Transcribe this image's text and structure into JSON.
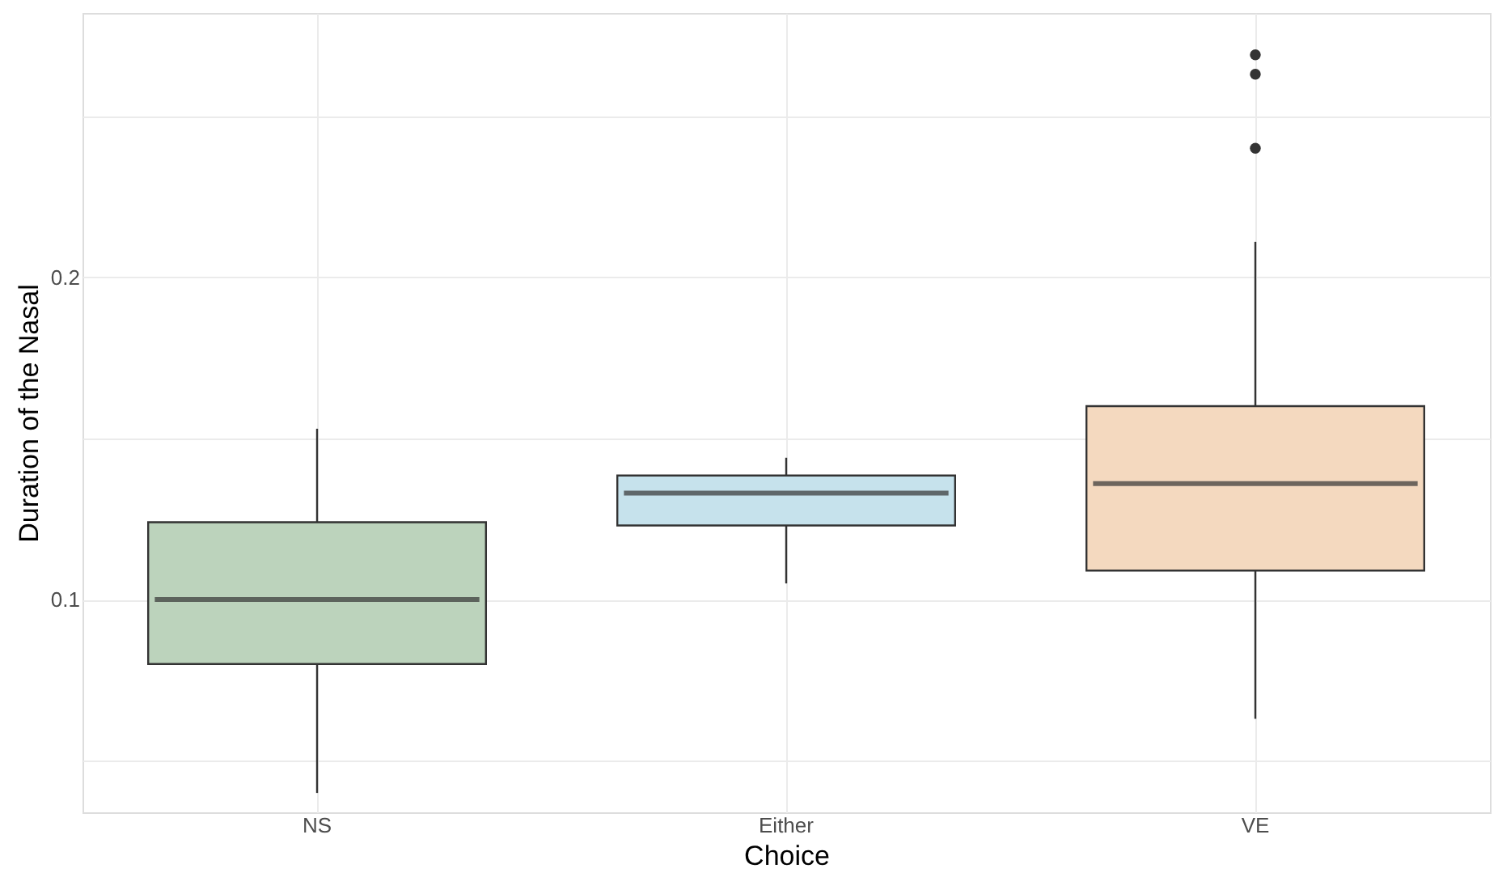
{
  "chart_data": {
    "type": "box",
    "xlabel": "Choice",
    "ylabel": "Duration of the Nasal",
    "categories": [
      "NS",
      "Either",
      "VE"
    ],
    "colors": [
      "#bcd3bc",
      "#c6e2ec",
      "#f4d9bf"
    ],
    "boxes": [
      {
        "low": 0.04,
        "q1": 0.08,
        "median": 0.1,
        "q3": 0.124,
        "high": 0.153
      },
      {
        "low": 0.105,
        "q1": 0.123,
        "median": 0.133,
        "q3": 0.1385,
        "high": 0.144
      },
      {
        "low": 0.063,
        "q1": 0.109,
        "median": 0.136,
        "q3": 0.16,
        "high": 0.211,
        "outliers": [
          0.269,
          0.263,
          0.24
        ]
      }
    ],
    "ylim": [
      0.034,
      0.282
    ],
    "yticks": [
      {
        "value": 0.05,
        "label": null
      },
      0.1,
      {
        "value": 0.15,
        "label": null
      },
      0.2,
      {
        "value": 0.25,
        "label": null
      }
    ],
    "grid": true
  }
}
